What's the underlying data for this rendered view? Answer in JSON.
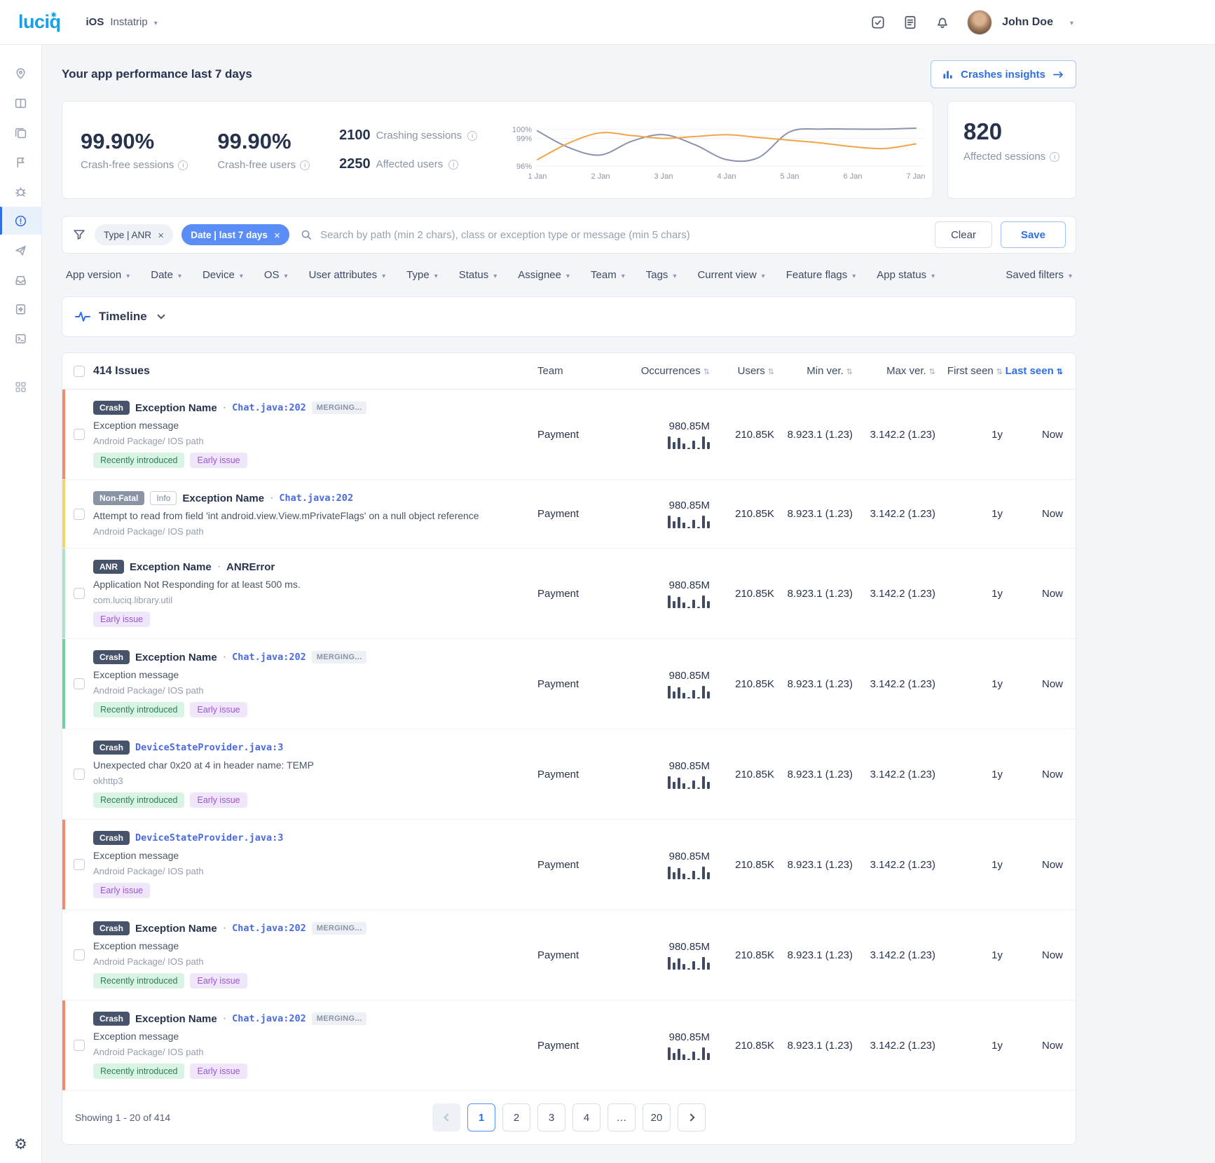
{
  "topbar": {
    "logo": "luciq",
    "platform": "iOS",
    "app_name": "Instatrip",
    "user_name": "John Doe"
  },
  "page": {
    "title": "Your app performance last 7 days",
    "insights_button": "Crashes insights"
  },
  "performance": {
    "crash_free_sessions_value": "99.90%",
    "crash_free_sessions_label": "Crash-free sessions",
    "crash_free_users_value": "99.90%",
    "crash_free_users_label": "Crash-free users",
    "crashing_sessions_value": "2100",
    "crashing_sessions_label": "Crashing sessions",
    "affected_users_value": "2250",
    "affected_users_label": "Affected users",
    "affected_sessions_value": "820",
    "affected_sessions_label": "Affected sessions"
  },
  "chart_data": {
    "type": "line",
    "x_labels": [
      "1 Jan",
      "2 Jan",
      "3 Jan",
      "4 Jan",
      "5 Jan",
      "6 Jan",
      "7 Jan"
    ],
    "y_ticks": [
      "100%",
      "99%",
      "96%"
    ],
    "y_tick_values": [
      100,
      99,
      96
    ],
    "ylim": [
      96,
      100.4
    ],
    "grid": false,
    "legend": "none",
    "series": [
      {
        "name": "Crash-free sessions",
        "color": "#8b93ad",
        "values": [
          99.8,
          98.0,
          97.2,
          98.7,
          99.4,
          98.3,
          96.7,
          96.9,
          99.7,
          100,
          100,
          100,
          100.1
        ]
      },
      {
        "name": "Crash-free users",
        "color": "#f2a449",
        "values": [
          96.7,
          98.5,
          99.6,
          99.3,
          99.0,
          99.2,
          99.4,
          99.1,
          98.8,
          98.5,
          98.1,
          97.9,
          98.4
        ]
      }
    ]
  },
  "filters": {
    "chip_type": "Type | ANR",
    "chip_date": "Date | last 7 days",
    "search_placeholder": "Search by path (min 2 chars), class or exception type or message (min 5 chars)",
    "clear_label": "Clear",
    "save_label": "Save",
    "dropdowns": [
      "App version",
      "Date",
      "Device",
      "OS",
      "User attributes",
      "Type",
      "Status",
      "Assignee",
      "Team",
      "Tags",
      "Current view",
      "Feature flags",
      "App status"
    ],
    "saved_filters_label": "Saved filters"
  },
  "timeline": {
    "label": "Timeline"
  },
  "table": {
    "title": "414 Issues",
    "columns": {
      "team": "Team",
      "occurrences": "Occurrences",
      "users": "Users",
      "min_ver": "Min ver.",
      "max_ver": "Max ver.",
      "first_seen": "First seen",
      "last_seen": "Last seen"
    },
    "sparkline": [
      9,
      5,
      8,
      4,
      1,
      6,
      1,
      9,
      5
    ],
    "rows": [
      {
        "stripe": "#f58a6e",
        "type_badge": "Crash",
        "title": "Exception Name",
        "path": "Chat.java:202",
        "merging": "MERGING...",
        "message": "Exception message",
        "package": "Android Package/ IOS path",
        "tag1": "Recently introduced",
        "tag2": "Early issue",
        "team": "Payment",
        "occurrences": "980.85M",
        "users": "210.85K",
        "min_ver": "8.923.1 (1.23)",
        "max_ver": "3.142.2 (1.23)",
        "first_seen": "1y",
        "last_seen": "Now"
      },
      {
        "stripe": "#f6d468",
        "type_badge": "Non-Fatal",
        "info_badge": "Info",
        "title": "Exception Name",
        "path": "Chat.java:202",
        "message": "Attempt to read from field 'int android.view.View.mPrivateFlags' on a null object reference",
        "package": "Android Package/ IOS path",
        "team": "Payment",
        "occurrences": "980.85M",
        "users": "210.85K",
        "min_ver": "8.923.1 (1.23)",
        "max_ver": "3.142.2 (1.23)",
        "first_seen": "1y",
        "last_seen": "Now"
      },
      {
        "stripe": "#aee4c6",
        "type_badge": "ANR",
        "title": "Exception Name",
        "subtitle": "ANRError",
        "message": "Application Not Responding for at least 500 ms.",
        "package": "com.luciq.library.util",
        "tag2": "Early issue",
        "team": "Payment",
        "occurrences": "980.85M",
        "users": "210.85K",
        "min_ver": "8.923.1 (1.23)",
        "max_ver": "3.142.2 (1.23)",
        "first_seen": "1y",
        "last_seen": "Now"
      },
      {
        "stripe": "#6fd39c",
        "type_badge": "Crash",
        "title": "Exception Name",
        "path": "Chat.java:202",
        "merging": "MERGING...",
        "message": "Exception message",
        "package": "Android Package/ IOS path",
        "tag1": "Recently introduced",
        "tag2": "Early issue",
        "team": "Payment",
        "occurrences": "980.85M",
        "users": "210.85K",
        "min_ver": "8.923.1 (1.23)",
        "max_ver": "3.142.2 (1.23)",
        "first_seen": "1y",
        "last_seen": "Now"
      },
      {
        "stripe": "",
        "type_badge": "Crash",
        "path": "DeviceStateProvider.java:3",
        "message": "Unexpected char 0x20 at 4 in header name: TEMP",
        "package": "okhttp3",
        "tag1": "Recently introduced",
        "tag2": "Early issue",
        "team": "Payment",
        "occurrences": "980.85M",
        "users": "210.85K",
        "min_ver": "8.923.1 (1.23)",
        "max_ver": "3.142.2 (1.23)",
        "first_seen": "1y",
        "last_seen": "Now"
      },
      {
        "stripe": "#f58a6e",
        "type_badge": "Crash",
        "path": "DeviceStateProvider.java:3",
        "message": "Exception message",
        "package": "Android Package/ IOS path",
        "tag2": "Early issue",
        "team": "Payment",
        "occurrences": "980.85M",
        "users": "210.85K",
        "min_ver": "8.923.1 (1.23)",
        "max_ver": "3.142.2 (1.23)",
        "first_seen": "1y",
        "last_seen": "Now"
      },
      {
        "stripe": "",
        "type_badge": "Crash",
        "title": "Exception Name",
        "path": "Chat.java:202",
        "merging": "MERGING...",
        "message": "Exception message",
        "package": "Android Package/ IOS path",
        "tag1": "Recently introduced",
        "tag2": "Early issue",
        "team": "Payment",
        "occurrences": "980.85M",
        "users": "210.85K",
        "min_ver": "8.923.1 (1.23)",
        "max_ver": "3.142.2 (1.23)",
        "first_seen": "1y",
        "last_seen": "Now"
      },
      {
        "stripe": "#f58a6e",
        "type_badge": "Crash",
        "title": "Exception Name",
        "path": "Chat.java:202",
        "merging": "MERGING...",
        "message": "Exception message",
        "package": "Android Package/ IOS path",
        "tag1": "Recently introduced",
        "tag2": "Early issue",
        "team": "Payment",
        "occurrences": "980.85M",
        "users": "210.85K",
        "min_ver": "8.923.1 (1.23)",
        "max_ver": "3.142.2 (1.23)",
        "first_seen": "1y",
        "last_seen": "Now"
      }
    ]
  },
  "pagination": {
    "summary": "Showing 1 - 20 of 414",
    "pages": [
      "1",
      "2",
      "3",
      "4",
      "…",
      "20"
    ]
  }
}
